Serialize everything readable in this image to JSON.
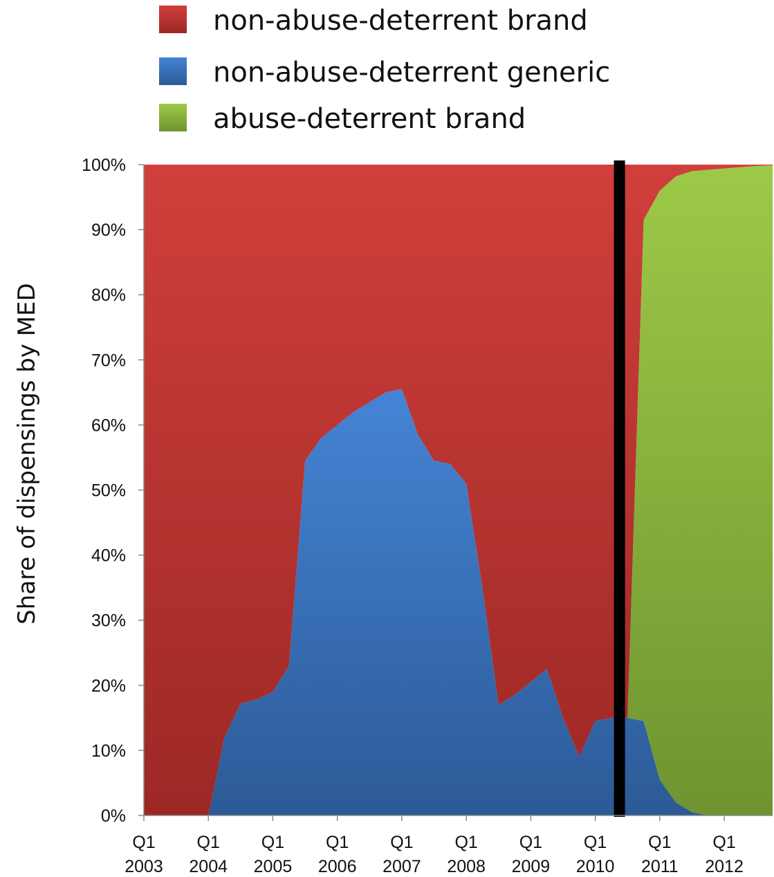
{
  "colors": {
    "non_abuse_deterrent_brand": "#c0362f",
    "non_abuse_deterrent_generic": "#3b78c4",
    "abuse_deterrent_brand": "#8cb63c",
    "marker_line": "#000000"
  },
  "chart_data": {
    "type": "area",
    "stacked": true,
    "ylabel": "Share of dispensings by MED",
    "xlabel": "",
    "ylim": [
      0,
      100
    ],
    "yticks": [
      "0%",
      "10%",
      "20%",
      "30%",
      "40%",
      "50%",
      "60%",
      "70%",
      "80%",
      "90%",
      "100%"
    ],
    "xticks": [
      {
        "q": "Q1",
        "year": "2003",
        "quarter": 0
      },
      {
        "q": "Q1",
        "year": "2004",
        "quarter": 4
      },
      {
        "q": "Q1",
        "year": "2005",
        "quarter": 8
      },
      {
        "q": "Q1",
        "year": "2006",
        "quarter": 12
      },
      {
        "q": "Q1",
        "year": "2007",
        "quarter": 16
      },
      {
        "q": "Q1",
        "year": "2008",
        "quarter": 20
      },
      {
        "q": "Q1",
        "year": "2009",
        "quarter": 24
      },
      {
        "q": "Q1",
        "year": "2010",
        "quarter": 28
      },
      {
        "q": "Q1",
        "year": "2011",
        "quarter": 32
      },
      {
        "q": "Q1",
        "year": "2012",
        "quarter": 36
      }
    ],
    "x_quarters": [
      0,
      1,
      2,
      3,
      4,
      5,
      6,
      7,
      8,
      9,
      10,
      11,
      12,
      13,
      14,
      15,
      16,
      17,
      18,
      19,
      20,
      21,
      22,
      23,
      24,
      25,
      26,
      27,
      28,
      29,
      30,
      31,
      32,
      33,
      34,
      35,
      36,
      37,
      38,
      39
    ],
    "vertical_marker_quarter": 29.5,
    "grid": false,
    "legend_position": "top",
    "series": [
      {
        "name": "non-abuse-deterrent generic",
        "key": "non_abuse_deterrent_generic",
        "values": [
          0,
          0,
          0,
          0,
          0,
          12,
          17.2,
          17.8,
          19,
          23,
          54.5,
          58,
          60,
          62,
          63.5,
          65,
          65.5,
          58.5,
          54.5,
          54,
          51,
          35,
          17,
          18.5,
          20.5,
          22.5,
          15,
          9,
          14.5,
          15,
          15,
          14.5,
          5.5,
          2,
          0.5,
          0,
          0,
          0,
          0,
          0
        ]
      },
      {
        "name": "abuse-deterrent brand",
        "key": "abuse_deterrent_brand",
        "values": [
          0,
          0,
          0,
          0,
          0,
          0,
          0,
          0,
          0,
          0,
          0,
          0,
          0,
          0,
          0,
          0,
          0,
          0,
          0,
          0,
          0,
          0,
          0,
          0,
          0,
          0,
          0,
          0,
          0,
          0,
          0,
          77,
          90.5,
          96.2,
          98.5,
          99.2,
          99.4,
          99.6,
          99.8,
          99.9
        ]
      },
      {
        "name": "non-abuse-deterrent brand",
        "key": "non_abuse_deterrent_brand",
        "values": [
          100,
          100,
          100,
          100,
          100,
          88,
          82.8,
          82.2,
          81,
          77,
          45.5,
          42,
          40,
          38,
          36.5,
          35,
          34.5,
          41.5,
          45.5,
          46,
          49,
          65,
          83,
          81.5,
          79.5,
          77.5,
          85,
          91,
          85.5,
          85,
          85,
          8.5,
          4,
          1.8,
          1,
          0.8,
          0.6,
          0.4,
          0.2,
          0.1
        ]
      }
    ]
  }
}
